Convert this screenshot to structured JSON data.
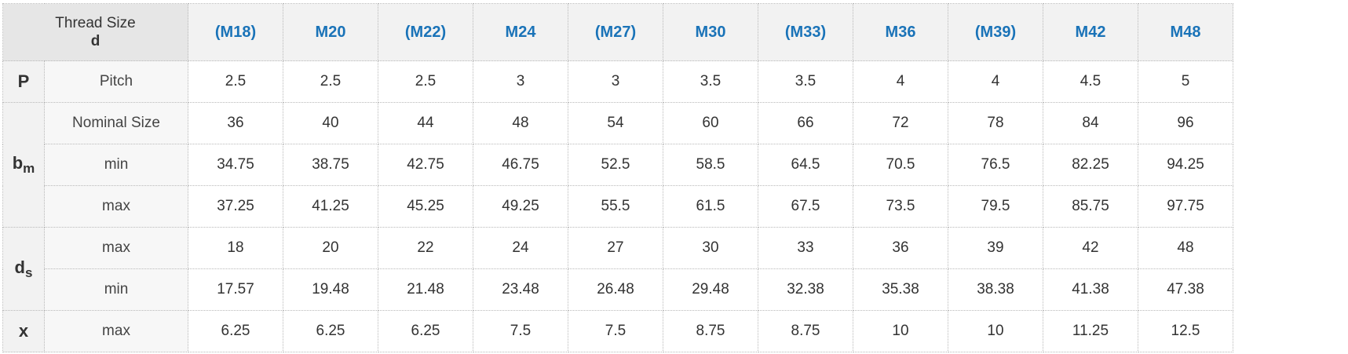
{
  "header": {
    "thread_size_label": "Thread Size",
    "thread_size_symbol": "d",
    "sizes": [
      "(M18)",
      "M20",
      "(M22)",
      "M24",
      "(M27)",
      "M30",
      "(M33)",
      "M36",
      "(M39)",
      "M42",
      "M48"
    ]
  },
  "groups": [
    {
      "symbol": "P",
      "subscript": "",
      "rows": [
        {
          "label": "Pitch",
          "values": [
            "2.5",
            "2.5",
            "2.5",
            "3",
            "3",
            "3.5",
            "3.5",
            "4",
            "4",
            "4.5",
            "5"
          ]
        }
      ]
    },
    {
      "symbol": "b",
      "subscript": "m",
      "rows": [
        {
          "label": "Nominal Size",
          "values": [
            "36",
            "40",
            "44",
            "48",
            "54",
            "60",
            "66",
            "72",
            "78",
            "84",
            "96"
          ]
        },
        {
          "label": "min",
          "values": [
            "34.75",
            "38.75",
            "42.75",
            "46.75",
            "52.5",
            "58.5",
            "64.5",
            "70.5",
            "76.5",
            "82.25",
            "94.25"
          ]
        },
        {
          "label": "max",
          "values": [
            "37.25",
            "41.25",
            "45.25",
            "49.25",
            "55.5",
            "61.5",
            "67.5",
            "73.5",
            "79.5",
            "85.75",
            "97.75"
          ]
        }
      ]
    },
    {
      "symbol": "d",
      "subscript": "s",
      "rows": [
        {
          "label": "max",
          "values": [
            "18",
            "20",
            "22",
            "24",
            "27",
            "30",
            "33",
            "36",
            "39",
            "42",
            "48"
          ]
        },
        {
          "label": "min",
          "values": [
            "17.57",
            "19.48",
            "21.48",
            "23.48",
            "26.48",
            "29.48",
            "32.38",
            "35.38",
            "38.38",
            "41.38",
            "47.38"
          ]
        }
      ]
    },
    {
      "symbol": "x",
      "subscript": "",
      "rows": [
        {
          "label": "max",
          "values": [
            "6.25",
            "6.25",
            "6.25",
            "7.5",
            "7.5",
            "8.75",
            "8.75",
            "10",
            "10",
            "11.25",
            "12.5"
          ]
        }
      ]
    }
  ],
  "colors": {
    "size_link": "#1a73b8",
    "header_bg": "#f2f2f2",
    "corner_bg": "#e6e6e6",
    "border": "#b9b9b9"
  }
}
